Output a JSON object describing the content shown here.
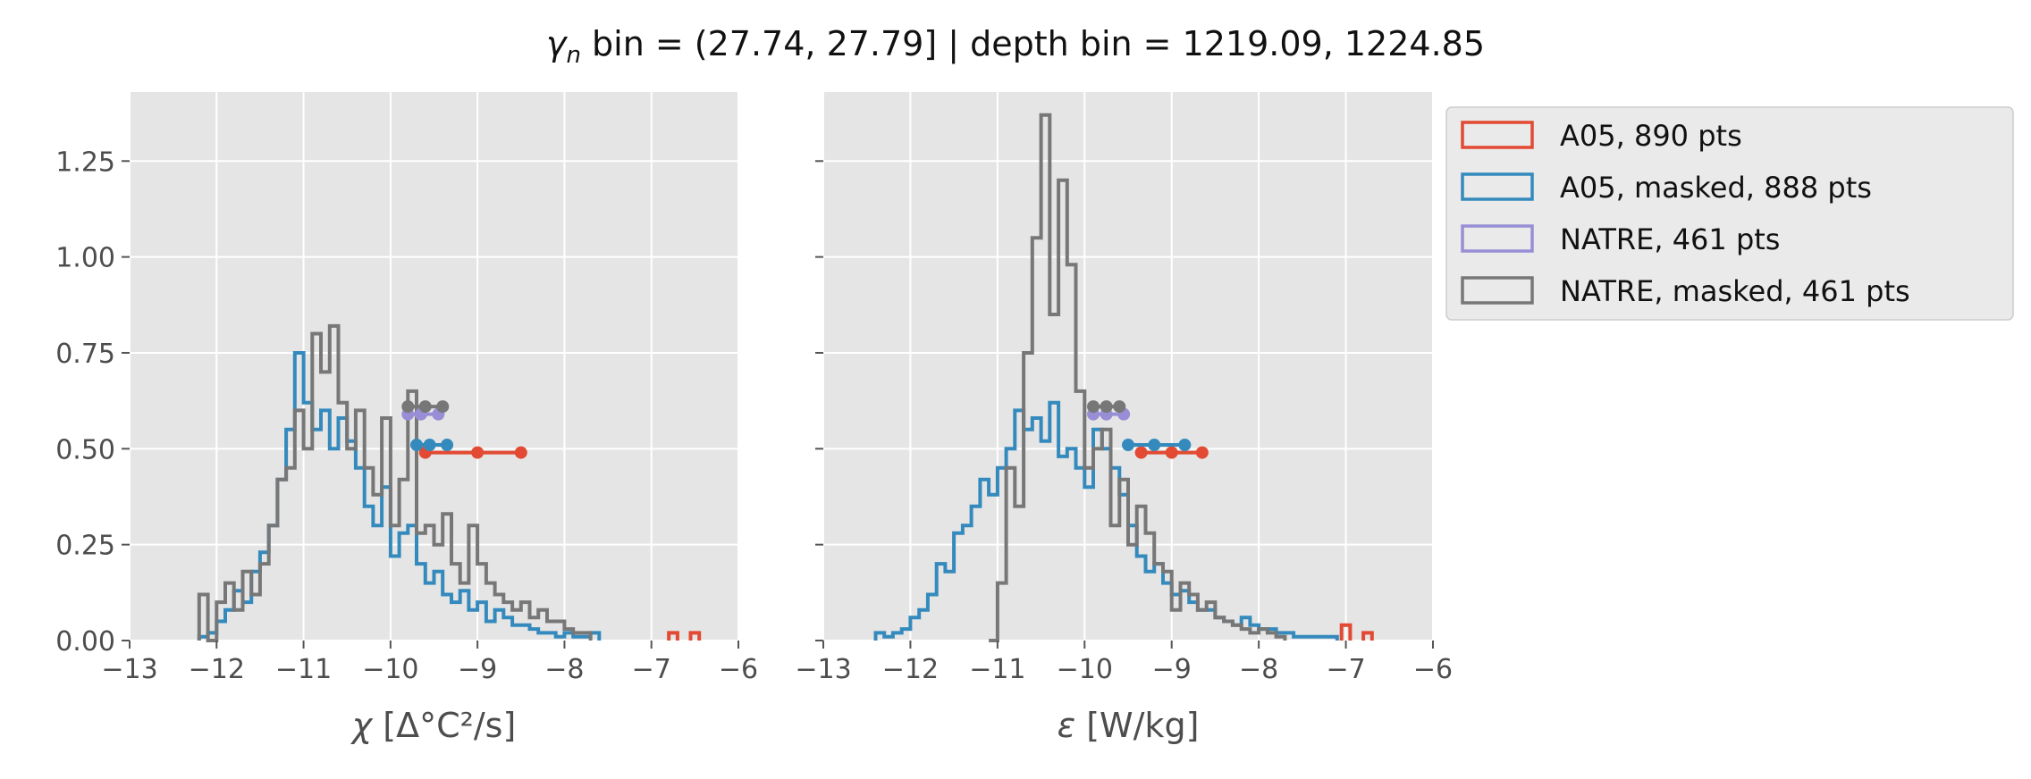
{
  "title": "γn bin = (27.74, 27.79] | depth bin = 1219.09, 1224.85",
  "title_parts": {
    "symbol": "γ",
    "subscript": "n",
    "rest": " bin = (27.74, 27.79] | depth bin = 1219.09, 1224.85"
  },
  "colors": {
    "A05": "#E24A33",
    "A05_masked": "#348ABD",
    "NATRE": "#988ED5",
    "NATRE_masked": "#777777",
    "panel_background": "#E5E5E5",
    "grid": "#FFFFFF"
  },
  "legend": {
    "placement": "outside right, top",
    "entries": [
      {
        "label": "A05, 890 pts",
        "color": "#E24A33"
      },
      {
        "label": "A05, masked,  888 pts",
        "color": "#348ABD"
      },
      {
        "label": "NATRE, 461 pts",
        "color": "#988ED5"
      },
      {
        "label": "NATRE, masked,  461 pts",
        "color": "#777777"
      }
    ]
  },
  "chart_data": [
    {
      "type": "histogram",
      "xlabel": "χ [Δ°C²/s]",
      "xlabel_parts": {
        "symbol": "χ",
        "rest": " [Δ°C²/s]"
      },
      "ylabel": "",
      "xlim": [
        -13,
        -6
      ],
      "ylim": [
        0,
        1.43
      ],
      "xticks": [
        "−13",
        "−12",
        "−11",
        "−10",
        "−9",
        "−8",
        "−7",
        "−6"
      ],
      "xtick_values": [
        -13,
        -12,
        -11,
        -10,
        -9,
        -8,
        -7,
        -6
      ],
      "yticks": [
        "0.00",
        "0.25",
        "0.50",
        "0.75",
        "1.00",
        "1.25"
      ],
      "ytick_values": [
        0,
        0.25,
        0.5,
        0.75,
        1.0,
        1.25
      ],
      "grid": true,
      "series": [
        {
          "name": "A05, 890 pts",
          "color": "#E24A33",
          "x": [
            -6.75,
            -6.5
          ],
          "y": [
            0.02,
            0.02
          ]
        },
        {
          "name": "A05, masked,  888 pts",
          "color": "#348ABD",
          "x": [
            -12.15,
            -12.05,
            -11.95,
            -11.85,
            -11.75,
            -11.65,
            -11.55,
            -11.45,
            -11.35,
            -11.25,
            -11.15,
            -11.05,
            -10.95,
            -10.85,
            -10.75,
            -10.65,
            -10.55,
            -10.45,
            -10.35,
            -10.25,
            -10.15,
            -10.05,
            -9.95,
            -9.85,
            -9.75,
            -9.65,
            -9.55,
            -9.45,
            -9.35,
            -9.25,
            -9.15,
            -9.05,
            -8.95,
            -8.85,
            -8.75,
            -8.65,
            -8.55,
            -8.45,
            -8.35,
            -8.25,
            -8.15,
            -8.05,
            -7.95,
            -7.85,
            -7.75,
            -7.65
          ],
          "y": [
            0.01,
            0.02,
            0.05,
            0.08,
            0.13,
            0.1,
            0.18,
            0.23,
            0.3,
            0.42,
            0.55,
            0.75,
            0.62,
            0.55,
            0.6,
            0.5,
            0.58,
            0.52,
            0.45,
            0.35,
            0.3,
            0.4,
            0.22,
            0.28,
            0.3,
            0.2,
            0.15,
            0.18,
            0.12,
            0.1,
            0.13,
            0.08,
            0.1,
            0.05,
            0.08,
            0.06,
            0.04,
            0.04,
            0.03,
            0.02,
            0.02,
            0.01,
            0.02,
            0.01,
            0.01,
            0.02
          ]
        },
        {
          "name": "NATRE, 461 pts",
          "color": "#988ED5",
          "x": [],
          "y": []
        },
        {
          "name": "NATRE, masked,  461 pts",
          "color": "#777777",
          "x": [
            -12.15,
            -12.05,
            -11.95,
            -11.85,
            -11.75,
            -11.65,
            -11.55,
            -11.45,
            -11.35,
            -11.25,
            -11.15,
            -11.05,
            -10.95,
            -10.85,
            -10.75,
            -10.65,
            -10.55,
            -10.45,
            -10.35,
            -10.25,
            -10.15,
            -10.05,
            -9.95,
            -9.85,
            -9.75,
            -9.65,
            -9.55,
            -9.45,
            -9.35,
            -9.25,
            -9.15,
            -9.05,
            -8.95,
            -8.85,
            -8.75,
            -8.65,
            -8.55,
            -8.45,
            -8.35,
            -8.25,
            -8.15,
            -8.05,
            -7.95,
            -7.85,
            -7.75
          ],
          "y": [
            0.12,
            0.0,
            0.1,
            0.15,
            0.08,
            0.18,
            0.12,
            0.2,
            0.3,
            0.42,
            0.45,
            0.6,
            0.5,
            0.8,
            0.7,
            0.82,
            0.62,
            0.5,
            0.6,
            0.45,
            0.38,
            0.58,
            0.3,
            0.42,
            0.65,
            0.28,
            0.3,
            0.25,
            0.33,
            0.2,
            0.15,
            0.3,
            0.2,
            0.15,
            0.12,
            0.1,
            0.08,
            0.1,
            0.06,
            0.08,
            0.05,
            0.05,
            0.03,
            0.02,
            0.02
          ]
        }
      ],
      "range_markers": [
        {
          "series": "A05, 890 pts",
          "color": "#E24A33",
          "x": [
            -9.6,
            -9.0,
            -8.5
          ],
          "y": 0.49
        },
        {
          "series": "A05, masked,  888 pts",
          "color": "#348ABD",
          "x": [
            -9.7,
            -9.55,
            -9.35
          ],
          "y": 0.51
        },
        {
          "series": "NATRE, 461 pts",
          "color": "#988ED5",
          "x": [
            -9.8,
            -9.65,
            -9.45
          ],
          "y": 0.59
        },
        {
          "series": "NATRE, masked,  461 pts",
          "color": "#777777",
          "x": [
            -9.8,
            -9.6,
            -9.4
          ],
          "y": 0.61
        }
      ]
    },
    {
      "type": "histogram",
      "xlabel": "ε [W/kg]",
      "xlabel_parts": {
        "symbol": "ε",
        "rest": " [W/kg]"
      },
      "ylabel": "",
      "xlim": [
        -13,
        -6
      ],
      "ylim": [
        0,
        1.43
      ],
      "xticks": [
        "−13",
        "−12",
        "−11",
        "−10",
        "−9",
        "−8",
        "−7",
        "−6"
      ],
      "xtick_values": [
        -13,
        -12,
        -11,
        -10,
        -9,
        -8,
        -7,
        -6
      ],
      "yticks": [],
      "ytick_values": [
        0,
        0.25,
        0.5,
        0.75,
        1.0,
        1.25
      ],
      "grid": true,
      "series": [
        {
          "name": "A05, 890 pts",
          "color": "#E24A33",
          "x": [
            -7.0,
            -6.75
          ],
          "y": [
            0.04,
            0.02
          ]
        },
        {
          "name": "A05, masked,  888 pts",
          "color": "#348ABD",
          "x": [
            -12.35,
            -12.25,
            -12.15,
            -12.05,
            -11.95,
            -11.85,
            -11.75,
            -11.65,
            -11.55,
            -11.45,
            -11.35,
            -11.25,
            -11.15,
            -11.05,
            -10.95,
            -10.85,
            -10.75,
            -10.65,
            -10.55,
            -10.45,
            -10.35,
            -10.25,
            -10.15,
            -10.05,
            -9.95,
            -9.85,
            -9.75,
            -9.65,
            -9.55,
            -9.45,
            -9.35,
            -9.25,
            -9.15,
            -9.05,
            -8.95,
            -8.85,
            -8.75,
            -8.65,
            -8.55,
            -8.45,
            -8.35,
            -8.25,
            -8.15,
            -8.05,
            -7.95,
            -7.85,
            -7.75,
            -7.65,
            -7.55,
            -7.45,
            -7.35,
            -7.25,
            -7.15
          ],
          "y": [
            0.02,
            0.01,
            0.02,
            0.03,
            0.06,
            0.08,
            0.12,
            0.2,
            0.18,
            0.28,
            0.3,
            0.35,
            0.42,
            0.38,
            0.45,
            0.5,
            0.6,
            0.55,
            0.58,
            0.52,
            0.62,
            0.48,
            0.5,
            0.45,
            0.4,
            0.55,
            0.5,
            0.45,
            0.38,
            0.3,
            0.22,
            0.18,
            0.2,
            0.15,
            0.12,
            0.13,
            0.1,
            0.08,
            0.08,
            0.06,
            0.05,
            0.04,
            0.06,
            0.04,
            0.03,
            0.03,
            0.02,
            0.02,
            0.01,
            0.01,
            0.01,
            0.01,
            0.01
          ]
        },
        {
          "name": "NATRE, 461 pts",
          "color": "#988ED5",
          "x": [],
          "y": []
        },
        {
          "name": "NATRE, masked,  461 pts",
          "color": "#777777",
          "x": [
            -11.05,
            -10.95,
            -10.85,
            -10.75,
            -10.65,
            -10.55,
            -10.45,
            -10.35,
            -10.25,
            -10.15,
            -10.05,
            -9.95,
            -9.85,
            -9.75,
            -9.65,
            -9.55,
            -9.45,
            -9.35,
            -9.25,
            -9.15,
            -9.05,
            -8.95,
            -8.85,
            -8.75,
            -8.65,
            -8.55,
            -8.45,
            -8.35,
            -8.25,
            -8.15,
            -8.05,
            -7.95,
            -7.85,
            -7.75
          ],
          "y": [
            0.0,
            0.15,
            0.45,
            0.35,
            0.75,
            1.05,
            1.37,
            0.85,
            1.2,
            0.98,
            0.65,
            0.45,
            0.5,
            0.55,
            0.3,
            0.42,
            0.25,
            0.35,
            0.28,
            0.2,
            0.18,
            0.08,
            0.15,
            0.12,
            0.08,
            0.1,
            0.06,
            0.05,
            0.04,
            0.03,
            0.02,
            0.03,
            0.02,
            0.01
          ]
        }
      ],
      "range_markers": [
        {
          "series": "A05, 890 pts",
          "color": "#E24A33",
          "x": [
            -9.35,
            -9.0,
            -8.65
          ],
          "y": 0.49
        },
        {
          "series": "A05, masked,  888 pts",
          "color": "#348ABD",
          "x": [
            -9.5,
            -9.2,
            -8.85
          ],
          "y": 0.51
        },
        {
          "series": "NATRE, 461 pts",
          "color": "#988ED5",
          "x": [
            -9.9,
            -9.75,
            -9.55
          ],
          "y": 0.59
        },
        {
          "series": "NATRE, masked,  461 pts",
          "color": "#777777",
          "x": [
            -9.9,
            -9.75,
            -9.6
          ],
          "y": 0.61
        }
      ]
    }
  ]
}
